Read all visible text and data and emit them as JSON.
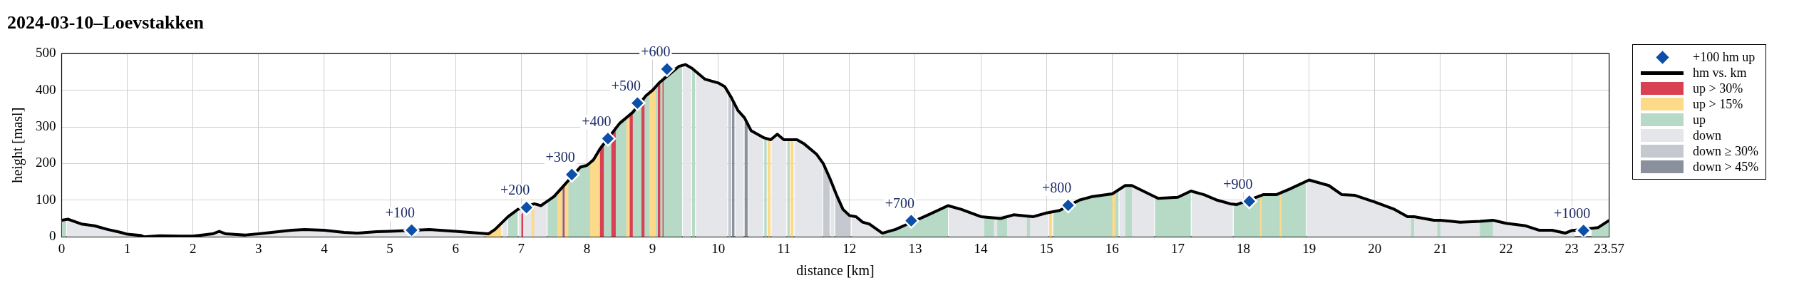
{
  "chart_data": {
    "type": "area",
    "title": "2024-03-10–Loevstakken",
    "xlabel": "distance [km]",
    "ylabel": "height [masl]",
    "xlim": [
      0,
      23.57
    ],
    "xticks": [
      0,
      1,
      2,
      3,
      4,
      5,
      6,
      7,
      8,
      9,
      10,
      11,
      12,
      13,
      14,
      15,
      16,
      17,
      18,
      19,
      20,
      21,
      22,
      23,
      23.57
    ],
    "ylim": [
      0,
      500
    ],
    "yticks": [
      0,
      100,
      200,
      300,
      400,
      500
    ],
    "grid": true,
    "legend": "right",
    "annotations": [
      {
        "text": "+100",
        "x": 5.33,
        "y": 18
      },
      {
        "text": "+200",
        "x": 7.08,
        "y": 80
      },
      {
        "text": "+300",
        "x": 7.77,
        "y": 170
      },
      {
        "text": "+400",
        "x": 8.32,
        "y": 268
      },
      {
        "text": "+500",
        "x": 8.77,
        "y": 365
      },
      {
        "text": "+600",
        "x": 9.22,
        "y": 458
      },
      {
        "text": "+700",
        "x": 12.94,
        "y": 44
      },
      {
        "text": "+800",
        "x": 15.33,
        "y": 86
      },
      {
        "text": "+900",
        "x": 18.09,
        "y": 97
      },
      {
        "text": "+1000",
        "x": 23.18,
        "y": 17
      }
    ],
    "series": [
      {
        "name": "+100 hm up",
        "type": "scatter",
        "marker": "diamond",
        "color": "#0d4fa8",
        "x": [
          5.33,
          7.08,
          7.77,
          8.32,
          8.77,
          9.22,
          12.94,
          15.33,
          18.09,
          23.18
        ],
        "values": [
          18,
          80,
          170,
          268,
          365,
          458,
          44,
          86,
          97,
          17
        ]
      },
      {
        "name": "hm vs. km",
        "type": "line",
        "color": "#000000",
        "x": [
          0,
          0.1,
          0.3,
          0.5,
          0.7,
          0.9,
          1.0,
          1.2,
          1.25,
          1.5,
          1.8,
          2.0,
          2.3,
          2.4,
          2.5,
          2.8,
          3.0,
          3.2,
          3.5,
          3.7,
          4.0,
          4.3,
          4.5,
          4.8,
          5.0,
          5.6,
          6.0,
          6.5,
          6.6,
          6.8,
          6.95,
          7.2,
          7.3,
          7.5,
          7.6,
          7.9,
          8.0,
          8.1,
          8.2,
          8.5,
          8.7,
          8.9,
          9.0,
          9.1,
          9.4,
          9.5,
          9.6,
          9.7,
          9.8,
          10.0,
          10.1,
          10.2,
          10.3,
          10.4,
          10.5,
          10.7,
          10.8,
          10.9,
          11.0,
          11.2,
          11.3,
          11.5,
          11.6,
          11.7,
          11.8,
          11.9,
          12.0,
          12.1,
          12.2,
          12.3,
          12.5,
          12.7,
          12.85,
          13.2,
          13.5,
          13.7,
          14.0,
          14.3,
          14.5,
          14.8,
          15.0,
          15.2,
          15.5,
          15.7,
          16.0,
          16.2,
          16.3,
          16.7,
          17.0,
          17.2,
          17.4,
          17.6,
          17.8,
          17.9,
          18.3,
          18.5,
          18.7,
          19.0,
          19.3,
          19.5,
          19.7,
          20.0,
          20.3,
          20.5,
          20.6,
          20.9,
          21.0,
          21.3,
          21.6,
          21.8,
          22.0,
          22.3,
          22.5,
          22.7,
          22.9,
          23.0,
          23.4,
          23.57
        ],
        "values": [
          45,
          48,
          35,
          30,
          20,
          12,
          7,
          4,
          0,
          3,
          2,
          2,
          8,
          15,
          8,
          5,
          8,
          12,
          18,
          20,
          18,
          12,
          10,
          14,
          15,
          20,
          15,
          8,
          20,
          55,
          75,
          90,
          85,
          110,
          130,
          190,
          195,
          210,
          240,
          310,
          340,
          385,
          400,
          420,
          465,
          470,
          460,
          445,
          430,
          420,
          410,
          380,
          345,
          325,
          290,
          270,
          265,
          280,
          265,
          265,
          255,
          225,
          200,
          160,
          115,
          75,
          58,
          55,
          40,
          35,
          10,
          20,
          32,
          60,
          85,
          75,
          55,
          50,
          60,
          55,
          65,
          72,
          100,
          110,
          117,
          140,
          140,
          105,
          108,
          125,
          115,
          100,
          90,
          88,
          115,
          115,
          130,
          155,
          140,
          115,
          113,
          95,
          75,
          55,
          55,
          45,
          45,
          40,
          42,
          45,
          37,
          30,
          18,
          18,
          10,
          17,
          25,
          45
        ]
      },
      {
        "name": "up > 30%",
        "color": "#d94152",
        "x": [
          7.0,
          7.03,
          null,
          7.63,
          7.66,
          null,
          8.2,
          8.26,
          null,
          8.37,
          8.44,
          null,
          8.65,
          8.7,
          null,
          8.83,
          8.88,
          null,
          9.08,
          9.12,
          null,
          9.15,
          9.17
        ],
        "values": [
          62,
          65,
          null,
          135,
          140,
          null,
          240,
          256,
          null,
          280,
          302,
          null,
          335,
          340,
          null,
          377,
          383,
          null,
          415,
          425,
          null,
          430,
          440
        ]
      },
      {
        "name": "up > 15%",
        "color": "#fdd98a",
        "x": [
          6.45,
          6.7,
          null,
          7.16,
          7.2,
          null,
          7.55,
          7.62,
          null,
          7.67,
          7.72,
          null,
          8.05,
          8.19,
          null,
          8.6,
          8.69,
          null,
          8.95,
          9.05,
          null,
          10.75,
          10.8,
          null,
          11.1,
          11.15,
          null,
          15.04,
          15.09,
          null,
          16.0,
          16.05,
          null,
          18.25,
          18.28,
          null,
          18.55,
          18.58
        ],
        "values": [
          8,
          35,
          null,
          86,
          90,
          null,
          120,
          135,
          null,
          150,
          158,
          null,
          200,
          238,
          null,
          325,
          338,
          null,
          395,
          410,
          null,
          268,
          265,
          null,
          265,
          265,
          null,
          66,
          68,
          null,
          117,
          125,
          null,
          112,
          114,
          null,
          118,
          120
        ]
      },
      {
        "name": "up",
        "color": "#b7dac7",
        "x": [
          0,
          0.07,
          null,
          6.8,
          6.95,
          null,
          7.4,
          7.5,
          7.9,
          8.0,
          8.5,
          8.9,
          9.3,
          9.4,
          9.45,
          null,
          9.6,
          9.65,
          null,
          10.7,
          10.74,
          null,
          11.05,
          11.09,
          null,
          12.5,
          12.7,
          12.85,
          13.2,
          13.5,
          null,
          14.05,
          14.2,
          null,
          14.25,
          14.4,
          null,
          14.7,
          14.75,
          null,
          15.1,
          15.2,
          15.5,
          15.7,
          16.1,
          null,
          16.2,
          16.3,
          null,
          16.65,
          16.7,
          17.0,
          17.2,
          null,
          17.85,
          18.0,
          18.3,
          18.5,
          18.7,
          18.95,
          null,
          20.55,
          20.6,
          null,
          20.95,
          21.0,
          null,
          21.6,
          21.8,
          null,
          23.3,
          23.4,
          23.57
        ],
        "values": [
          45,
          47,
          null,
          55,
          75,
          null,
          100,
          110,
          190,
          195,
          310,
          385,
          462,
          465,
          468,
          null,
          460,
          452,
          null,
          270,
          268,
          null,
          265,
          265,
          null,
          10,
          20,
          32,
          60,
          85,
          null,
          55,
          52,
          null,
          50,
          55,
          null,
          57,
          56,
          null,
          68,
          72,
          100,
          110,
          127,
          null,
          140,
          140,
          null,
          107,
          105,
          108,
          125,
          null,
          89,
          92,
          115,
          115,
          130,
          152,
          null,
          55,
          55,
          null,
          45,
          45,
          null,
          42,
          45,
          null,
          18,
          25,
          45
        ]
      },
      {
        "name": "down",
        "color": "#e4e6e9",
        "x": [
          0.08,
          0.1,
          0.3,
          0.5,
          0.7,
          0.9,
          1.0,
          1.2,
          1.25,
          1.5,
          1.8,
          2.0,
          2.3,
          2.4,
          2.5,
          2.8,
          3.0,
          3.2,
          3.5,
          3.7,
          4.0,
          4.3,
          4.5,
          4.8,
          5.0,
          5.6,
          6.0,
          6.44,
          null,
          6.71,
          6.79,
          null,
          6.96,
          7.05,
          7.25,
          7.3,
          7.39,
          null,
          9.46,
          9.5,
          9.59,
          null,
          9.66,
          9.7,
          9.8,
          10.0,
          10.1,
          10.14,
          null,
          10.26,
          10.3,
          10.39,
          null,
          10.46,
          10.5,
          10.6,
          10.69,
          null,
          10.81,
          10.9,
          11.0,
          11.04,
          null,
          11.16,
          11.2,
          11.3,
          11.5,
          11.59,
          null,
          11.71,
          11.77,
          null,
          12.03,
          12.1,
          12.2,
          12.3,
          12.49,
          null,
          13.51,
          13.7,
          14.0,
          14.5,
          14.8,
          15.0,
          15.03,
          null,
          16.11,
          16.15,
          16.35,
          16.5,
          16.64,
          null,
          17.21,
          17.4,
          17.6,
          17.8,
          17.84,
          null,
          18.96,
          19.0,
          19.3,
          19.5,
          19.7,
          20.0,
          20.3,
          20.5,
          20.9,
          21.3,
          22.0,
          22.3,
          22.5,
          22.7,
          22.9,
          23.0,
          23.05
        ],
        "values": [
          47,
          48,
          35,
          30,
          20,
          12,
          7,
          4,
          0,
          3,
          2,
          2,
          8,
          15,
          8,
          5,
          8,
          12,
          18,
          20,
          18,
          12,
          10,
          14,
          15,
          20,
          15,
          8,
          null,
          37,
          53,
          null,
          74,
          68,
          88,
          85,
          98,
          null,
          468,
          470,
          461,
          null,
          450,
          445,
          430,
          420,
          410,
          398,
          null,
          358,
          345,
          328,
          null,
          305,
          290,
          275,
          271,
          null,
          266,
          280,
          265,
          265,
          null,
          265,
          265,
          255,
          225,
          203,
          null,
          155,
          125,
          null,
          57,
          55,
          40,
          35,
          11,
          null,
          85,
          75,
          55,
          60,
          55,
          65,
          66,
          null,
          127,
          134,
          138,
          122,
          107,
          null,
          125,
          115,
          100,
          90,
          89,
          null,
          152,
          155,
          140,
          115,
          113,
          95,
          75,
          55,
          45,
          40,
          37,
          30,
          18,
          18,
          10,
          17,
          19
        ]
      },
      {
        "name": "down ≥ 30%",
        "color": "#c5c8cf",
        "x": [
          10.15,
          10.2,
          null,
          11.6,
          11.7,
          null,
          11.78,
          11.9,
          12.02
        ],
        "values": [
          395,
          380,
          null,
          200,
          160,
          null,
          120,
          75,
          57
        ]
      },
      {
        "name": "down > 45%",
        "color": "#8b919c",
        "x": [
          10.21,
          10.25,
          null,
          10.4,
          10.45
        ],
        "values": [
          377,
          362,
          null,
          325,
          310
        ]
      }
    ]
  }
}
